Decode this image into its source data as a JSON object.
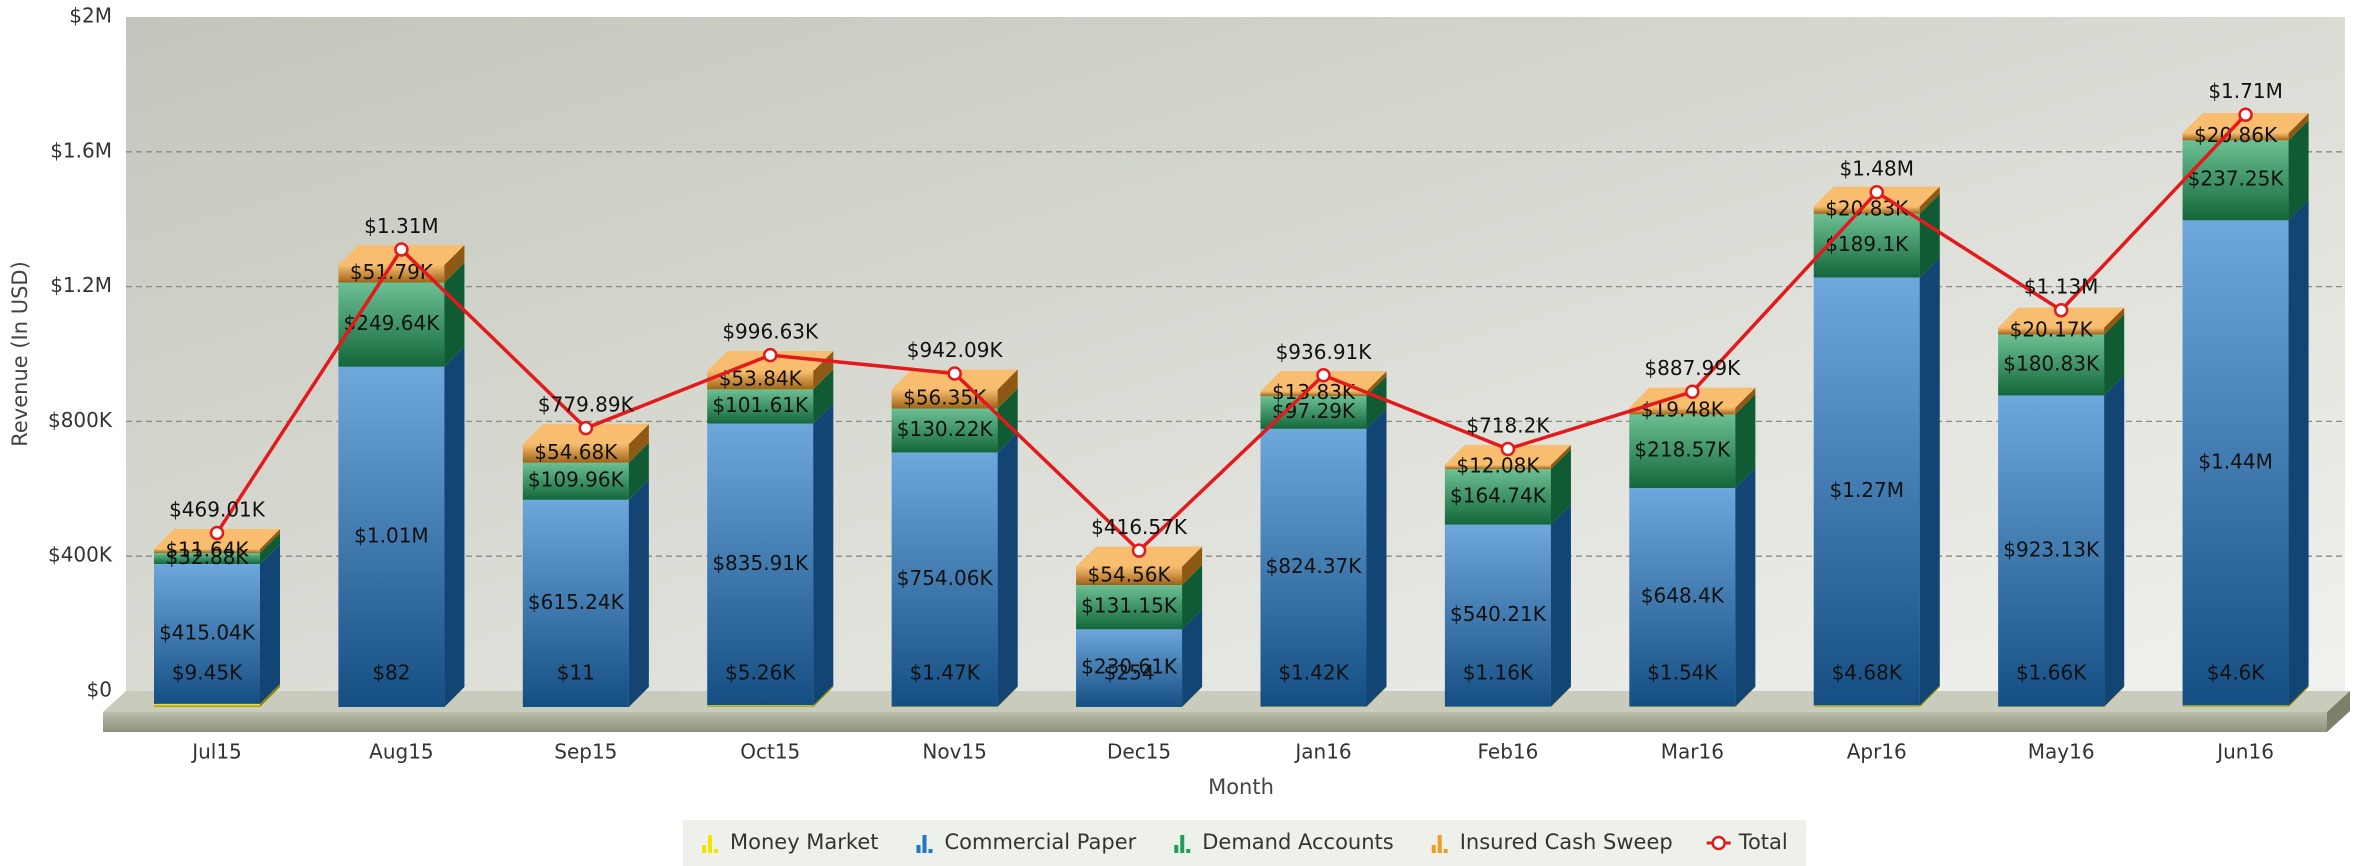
{
  "chart_data": {
    "type": "bar",
    "stacked": true,
    "x_label": "Month",
    "y_label": "Revenue (In USD)",
    "categories": [
      "Jul15",
      "Aug15",
      "Sep15",
      "Oct15",
      "Nov15",
      "Dec15",
      "Jan16",
      "Feb16",
      "Mar16",
      "Apr16",
      "May16",
      "Jun16"
    ],
    "series": [
      {
        "name": "Money Market",
        "color": "#f2e600",
        "values": [
          9450,
          82,
          11,
          5260,
          1470,
          254,
          1420,
          1160,
          1540,
          4680,
          1660,
          4600
        ],
        "value_labels": [
          "$9.45K",
          "$82",
          "$11",
          "$5.26K",
          "$1.47K",
          "$254",
          "$1.42K",
          "$1.16K",
          "$1.54K",
          "$4.68K",
          "$1.66K",
          "$4.6K"
        ]
      },
      {
        "name": "Commercial Paper",
        "color": "#1f78c8",
        "values": [
          415040,
          1010000,
          615240,
          835910,
          754060,
          230610,
          824370,
          540210,
          648400,
          1270000,
          923130,
          1440000
        ],
        "value_labels": [
          "$415.04K",
          "$1.01M",
          "$615.24K",
          "$835.91K",
          "$754.06K",
          "$230.61K",
          "$824.37K",
          "$540.21K",
          "$648.4K",
          "$1.27M",
          "$923.13K",
          "$1.44M"
        ]
      },
      {
        "name": "Demand Accounts",
        "color": "#1e9e5a",
        "values": [
          32880,
          249640,
          109960,
          101610,
          130220,
          131150,
          97290,
          164740,
          218570,
          189100,
          180830,
          237250
        ],
        "value_labels": [
          "$32.88K",
          "$249.64K",
          "$109.96K",
          "$101.61K",
          "$130.22K",
          "$131.15K",
          "$97.29K",
          "$164.74K",
          "$218.57K",
          "$189.1K",
          "$180.83K",
          "$237.25K"
        ]
      },
      {
        "name": "Insured Cash Sweep",
        "color": "#f59a23",
        "values": [
          11640,
          51790,
          54680,
          53840,
          56350,
          54560,
          13830,
          12080,
          19480,
          20830,
          20170,
          20860
        ],
        "value_labels": [
          "$11.64K",
          "$51.79K",
          "$54.68K",
          "$53.84K",
          "$56.35K",
          "$54.56K",
          "$13.83K",
          "$12.08K",
          "$19.48K",
          "$20.83K",
          "$20.17K",
          "$20.86K"
        ]
      },
      {
        "name": "Total",
        "color": "#e31a1c",
        "type": "line",
        "values": [
          469010,
          1310000,
          779890,
          996630,
          942090,
          416570,
          936910,
          718200,
          887990,
          1480000,
          1130000,
          1710000
        ],
        "value_labels": [
          "$469.01K",
          "$1.31M",
          "$779.89K",
          "$996.63K",
          "$942.09K",
          "$416.57K",
          "$936.91K",
          "$718.2K",
          "$887.99K",
          "$1.48M",
          "$1.13M",
          "$1.71M"
        ]
      }
    ],
    "ylim": [
      0,
      2000000
    ],
    "yticks": [
      {
        "value": 0,
        "label": "$0"
      },
      {
        "value": 400000,
        "label": "$400K"
      },
      {
        "value": 800000,
        "label": "$800K"
      },
      {
        "value": 1200000,
        "label": "$1.2M"
      },
      {
        "value": 1600000,
        "label": "$1.6M"
      },
      {
        "value": 2000000,
        "label": "$2M"
      }
    ],
    "grid": true,
    "legend": "bottom"
  }
}
